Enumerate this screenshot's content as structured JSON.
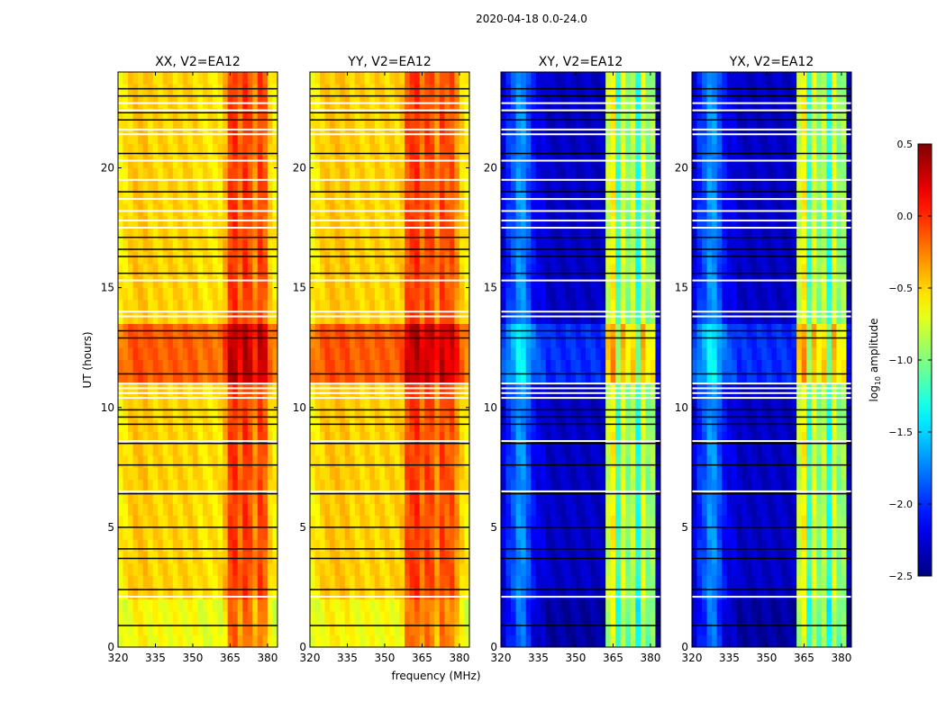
{
  "chart_data": {
    "type": "heatmap",
    "suptitle": "2020-04-18 0.0-24.0",
    "xlabel": "frequency (MHz)",
    "ylabel": "UT (hours)",
    "xlim": [
      320,
      384
    ],
    "ylim": [
      0,
      24
    ],
    "xticks": [
      "320",
      "335",
      "350",
      "365",
      "380"
    ],
    "xtick_values": [
      320,
      335,
      350,
      365,
      380
    ],
    "yticks": [
      "0",
      "5",
      "10",
      "15",
      "20"
    ],
    "ytick_values": [
      0,
      5,
      10,
      15,
      20
    ],
    "freq_bin_mhz": 2,
    "time_bin_hours": 0.5,
    "colorbar": {
      "label": "log",
      "label_sub": "10",
      "label_rest": " amplitude",
      "range": [
        -2.5,
        0.5
      ],
      "ticks": [
        "0.5",
        "0.0",
        "−0.5",
        "−1.0",
        "−1.5",
        "−2.0",
        "−2.5"
      ],
      "tick_values": [
        0.5,
        0.0,
        -0.5,
        -1.0,
        -1.5,
        -2.0,
        -2.5
      ],
      "colormap": "jet"
    },
    "panels": [
      {
        "title": "XX, V2=EA12",
        "freq_profile": [
          -0.6,
          -0.55,
          -0.5,
          -0.45,
          -0.45,
          -0.45,
          -0.5,
          -0.5,
          -0.5,
          -0.5,
          -0.5,
          -0.5,
          -0.5,
          -0.5,
          -0.5,
          -0.5,
          -0.55,
          -0.55,
          -0.55,
          -0.55,
          -0.55,
          -0.4,
          -0.05,
          0.0,
          -0.2,
          0.0,
          -0.1,
          -0.3,
          -0.05,
          -0.15,
          -0.5,
          -0.6
        ],
        "time_offset": {
          "0-2": -0.15,
          "11-13.5": 0.35
        }
      },
      {
        "title": "YY, V2=EA12",
        "freq_profile": [
          -0.6,
          -0.55,
          -0.5,
          -0.45,
          -0.45,
          -0.45,
          -0.45,
          -0.45,
          -0.5,
          -0.5,
          -0.5,
          -0.5,
          -0.5,
          -0.5,
          -0.5,
          -0.5,
          -0.5,
          -0.5,
          -0.45,
          -0.1,
          -0.05,
          0.0,
          -0.2,
          -0.05,
          -0.1,
          -0.3,
          -0.05,
          -0.15,
          -0.1,
          -0.3,
          -0.5,
          -0.6
        ],
        "time_offset": {
          "0-2": -0.15,
          "11-13.5": 0.35
        }
      },
      {
        "title": "XY, V2=EA12",
        "freq_profile": [
          -2.2,
          -2.0,
          -1.9,
          -1.7,
          -1.7,
          -1.9,
          -2.1,
          -2.2,
          -2.2,
          -2.3,
          -2.3,
          -2.3,
          -2.3,
          -2.3,
          -2.3,
          -2.3,
          -2.3,
          -2.3,
          -2.3,
          -2.3,
          -2.3,
          -0.8,
          -0.6,
          -1.2,
          -0.7,
          -1.0,
          -0.8,
          -1.3,
          -0.7,
          -1.0,
          -0.9,
          -2.4
        ],
        "time_offset": {
          "0-2": -0.1,
          "11-13.5": 0.3
        }
      },
      {
        "title": "YX, V2=EA12",
        "freq_profile": [
          -2.2,
          -2.0,
          -1.9,
          -1.7,
          -1.7,
          -1.9,
          -2.1,
          -2.2,
          -2.2,
          -2.3,
          -2.3,
          -2.3,
          -2.3,
          -2.3,
          -2.3,
          -2.3,
          -2.3,
          -2.3,
          -2.3,
          -2.3,
          -2.3,
          -0.8,
          -0.6,
          -1.2,
          -0.7,
          -1.0,
          -0.8,
          -1.3,
          -0.7,
          -1.0,
          -0.9,
          -2.4
        ],
        "time_offset": {
          "0-2": -0.1,
          "11-13.5": 0.3
        }
      }
    ],
    "flagged_hours_white": [
      2.1,
      6.5,
      8.6,
      10.4,
      10.6,
      10.8,
      11.0,
      13.8,
      14.0,
      15.3,
      17.5,
      17.8,
      18.2,
      18.7,
      19.5,
      20.3,
      21.4,
      21.6,
      22.4,
      22.7
    ],
    "flagged_hours_black": [
      0.9,
      2.4,
      3.7,
      4.1,
      5.0,
      6.4,
      7.6,
      8.5,
      9.3,
      9.6,
      9.9,
      11.4,
      12.9,
      13.2,
      15.6,
      16.3,
      16.6,
      17.1,
      19.0,
      20.6,
      22.0,
      22.3,
      23.0,
      23.3
    ]
  }
}
